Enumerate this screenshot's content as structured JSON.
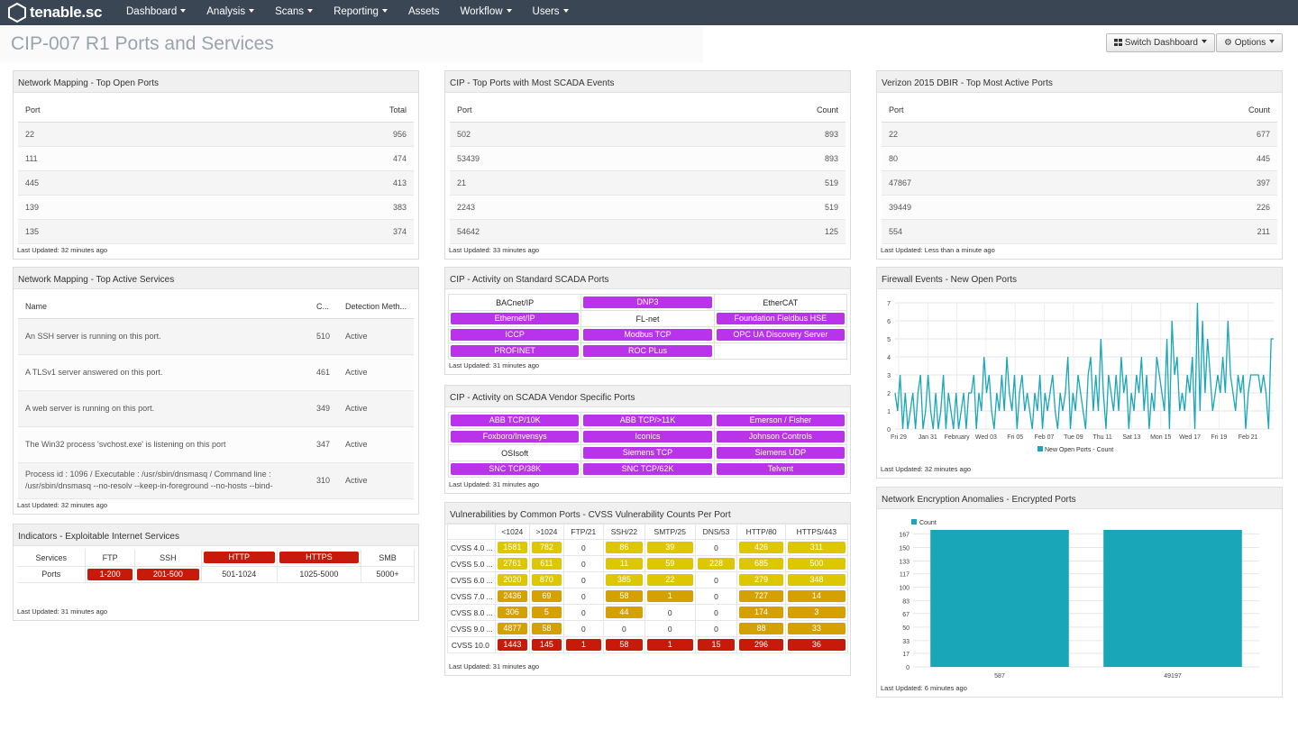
{
  "app": {
    "logo_text": "tenable.sc"
  },
  "nav": {
    "items": [
      "Dashboard",
      "Analysis",
      "Scans",
      "Reporting",
      "Assets",
      "Workflow",
      "Users"
    ]
  },
  "page": {
    "title": "CIP-007 R1 Ports and Services",
    "switch_label": "Switch Dashboard",
    "options_label": "Options"
  },
  "panels": {
    "top_open_ports": {
      "title": "Network Mapping - Top Open Ports",
      "col1": "Port",
      "col2": "Total",
      "rows": [
        [
          "22",
          "956"
        ],
        [
          "111",
          "474"
        ],
        [
          "445",
          "413"
        ],
        [
          "139",
          "383"
        ],
        [
          "135",
          "374"
        ]
      ],
      "updated": "Last Updated: 32 minutes ago"
    },
    "scada_events": {
      "title": "CIP - Top Ports with Most SCADA Events",
      "col1": "Port",
      "col2": "Count",
      "rows": [
        [
          "502",
          "893"
        ],
        [
          "53439",
          "893"
        ],
        [
          "21",
          "519"
        ],
        [
          "2243",
          "519"
        ],
        [
          "54642",
          "125"
        ]
      ],
      "updated": "Last Updated: 33 minutes ago"
    },
    "dbir": {
      "title": "Verizon 2015 DBIR - Top Most Active Ports",
      "col1": "Port",
      "col2": "Count",
      "rows": [
        [
          "22",
          "677"
        ],
        [
          "80",
          "445"
        ],
        [
          "47867",
          "397"
        ],
        [
          "39449",
          "226"
        ],
        [
          "554",
          "211"
        ]
      ],
      "updated": "Last Updated: Less than a minute ago"
    },
    "active_services": {
      "title": "Network Mapping - Top Active Services",
      "col_name": "Name",
      "col_count": "C...",
      "col_method": "Detection Meth...",
      "rows": [
        {
          "name": "An SSH server is running on this port.",
          "count": "510",
          "method": "Active"
        },
        {
          "name": "A TLSv1 server answered on this port.",
          "count": "461",
          "method": "Active"
        },
        {
          "name": "A web server is running on this port.",
          "count": "349",
          "method": "Active"
        },
        {
          "name": "The Win32 process 'svchost.exe' is listening on this port",
          "count": "347",
          "method": "Active"
        },
        {
          "name": "Process id : 1096 / Executable : /usr/sbin/dnsmasq / Command line : /usr/sbin/dnsmasq --no-resolv --keep-in-foreground --no-hosts --bind-",
          "count": "310",
          "method": "Active"
        }
      ],
      "updated": "Last Updated: 32 minutes ago"
    },
    "standard_scada": {
      "title": "CIP - Activity on Standard SCADA Ports",
      "cells": [
        {
          "label": "BACnet/IP",
          "active": false
        },
        {
          "label": "DNP3",
          "active": true
        },
        {
          "label": "EtherCAT",
          "active": false
        },
        {
          "label": "Ethernet/IP",
          "active": true
        },
        {
          "label": "FL-net",
          "active": false
        },
        {
          "label": "Foundation Fieldbus HSE",
          "active": true
        },
        {
          "label": "ICCP",
          "active": true
        },
        {
          "label": "Modbus TCP",
          "active": true
        },
        {
          "label": "OPC UA Discovery Server",
          "active": true
        },
        {
          "label": "PROFINET",
          "active": true
        },
        {
          "label": "ROC PLus",
          "active": true
        },
        {
          "label": "",
          "active": false
        }
      ],
      "updated": "Last Updated: 31 minutes ago"
    },
    "vendor_scada": {
      "title": "CIP - Activity on SCADA Vendor Specific Ports",
      "cells": [
        {
          "label": "ABB TCP/10K",
          "active": true
        },
        {
          "label": "ABB TCP/>11K",
          "active": true
        },
        {
          "label": "Emerson / Fisher",
          "active": true
        },
        {
          "label": "Foxboro/Invensys",
          "active": true
        },
        {
          "label": "Iconics",
          "active": true
        },
        {
          "label": "Johnson Controls",
          "active": true
        },
        {
          "label": "OSIsoft",
          "active": false
        },
        {
          "label": "Siemens TCP",
          "active": true
        },
        {
          "label": "Siemens UDP",
          "active": true
        },
        {
          "label": "SNC TCP/38K",
          "active": true
        },
        {
          "label": "SNC TCP/62K",
          "active": true
        },
        {
          "label": "Telvent",
          "active": true
        }
      ],
      "updated": "Last Updated: 31 minutes ago"
    },
    "indicators": {
      "title": "Indicators - Exploitable Internet Services",
      "headers": [
        "Services",
        "FTP",
        "SSH",
        "HTTP",
        "HTTPS",
        "SMB"
      ],
      "header_alert": [
        false,
        false,
        false,
        true,
        true,
        false
      ],
      "row": [
        "Ports",
        "1-200",
        "201-500",
        "501-1024",
        "1025-5000",
        "5000+"
      ],
      "row_alert": [
        false,
        true,
        true,
        false,
        false,
        false
      ],
      "updated": "Last Updated: 31 minutes ago"
    },
    "vuln_matrix": {
      "title": "Vulnerabilities by Common Ports - CVSS Vulnerability Counts Per Port",
      "headers": [
        "",
        "<1024",
        ">1024",
        "FTP/21",
        "SSH/22",
        "SMTP/25",
        "DNS/53",
        "HTTP/80",
        "HTTPS/443"
      ],
      "rows": [
        {
          "label": "CVSS 4.0 ...",
          "cells": [
            [
              "1581",
              "y"
            ],
            [
              "782",
              "y"
            ],
            [
              "0",
              ""
            ],
            [
              "86",
              "y"
            ],
            [
              "39",
              "y"
            ],
            [
              "0",
              ""
            ],
            [
              "426",
              "y"
            ],
            [
              "311",
              "y"
            ]
          ]
        },
        {
          "label": "CVSS 5.0 ...",
          "cells": [
            [
              "2761",
              "y"
            ],
            [
              "611",
              "y"
            ],
            [
              "0",
              ""
            ],
            [
              "11",
              "y"
            ],
            [
              "59",
              "y"
            ],
            [
              "228",
              "y"
            ],
            [
              "685",
              "y"
            ],
            [
              "500",
              "y"
            ]
          ]
        },
        {
          "label": "CVSS 6.0 ...",
          "cells": [
            [
              "2020",
              "y"
            ],
            [
              "870",
              "y"
            ],
            [
              "0",
              ""
            ],
            [
              "385",
              "y"
            ],
            [
              "22",
              "y"
            ],
            [
              "0",
              ""
            ],
            [
              "279",
              "y"
            ],
            [
              "348",
              "y"
            ]
          ]
        },
        {
          "label": "CVSS 7.0 ...",
          "cells": [
            [
              "2436",
              "o"
            ],
            [
              "69",
              "o"
            ],
            [
              "0",
              ""
            ],
            [
              "58",
              "o"
            ],
            [
              "1",
              "o"
            ],
            [
              "0",
              ""
            ],
            [
              "727",
              "o"
            ],
            [
              "14",
              "o"
            ]
          ]
        },
        {
          "label": "CVSS 8.0 ...",
          "cells": [
            [
              "306",
              "o"
            ],
            [
              "5",
              "o"
            ],
            [
              "0",
              ""
            ],
            [
              "44",
              "o"
            ],
            [
              "0",
              ""
            ],
            [
              "0",
              ""
            ],
            [
              "174",
              "o"
            ],
            [
              "3",
              "o"
            ]
          ]
        },
        {
          "label": "CVSS 9.0 ...",
          "cells": [
            [
              "4877",
              "o"
            ],
            [
              "58",
              "o"
            ],
            [
              "0",
              ""
            ],
            [
              "0",
              ""
            ],
            [
              "0",
              ""
            ],
            [
              "0",
              ""
            ],
            [
              "88",
              "o"
            ],
            [
              "33",
              "o"
            ]
          ]
        },
        {
          "label": "CVSS 10.0",
          "cells": [
            [
              "1443",
              "r"
            ],
            [
              "145",
              "r"
            ],
            [
              "1",
              "r"
            ],
            [
              "58",
              "r"
            ],
            [
              "1",
              "r"
            ],
            [
              "15",
              "r"
            ],
            [
              "296",
              "r"
            ],
            [
              "36",
              "r"
            ]
          ]
        }
      ],
      "updated": "Last Updated: 31 minutes ago"
    },
    "firewall": {
      "title": "Firewall Events - New Open Ports",
      "updated": "Last Updated: 32 minutes ago"
    },
    "encryption": {
      "title": "Network Encryption Anomalies - Encrypted Ports",
      "updated": "Last Updated: 6 minutes ago"
    }
  },
  "colors": {
    "accent": "#19a6b8",
    "purple": "#b833ea",
    "red": "#c81a0b",
    "yellow": "#dcc700",
    "orange": "#d4a100",
    "topbar": "#3a4654"
  },
  "chart_data": [
    {
      "type": "line",
      "title": "Firewall Events - New Open Ports",
      "legend": "New Open Ports - Count",
      "legend_position": "bottom",
      "xlabels": [
        "Fri 29",
        "Jan 31",
        "February",
        "Wed 03",
        "Fri 05",
        "Feb 07",
        "Tue 09",
        "Thu 11",
        "Sat 13",
        "Mon 15",
        "Wed 17",
        "Fri 19",
        "Feb 21"
      ],
      "ylim": [
        0,
        7
      ],
      "yticks": [
        0,
        1,
        2,
        3,
        4,
        5,
        6,
        7
      ],
      "values": [
        2,
        1,
        3,
        0,
        2,
        0,
        1,
        2,
        0,
        2,
        3,
        0,
        1,
        3,
        1,
        0,
        2,
        0,
        1,
        3,
        0,
        2,
        1,
        0,
        2,
        0,
        1,
        2,
        0,
        2,
        2,
        3,
        0,
        2,
        1,
        4,
        2,
        3,
        1,
        0,
        2,
        1,
        3,
        1,
        4,
        2,
        1,
        3,
        0,
        2,
        3,
        1,
        2,
        1,
        0,
        2,
        1,
        3,
        0,
        2,
        1,
        2,
        3,
        1,
        0,
        2,
        1,
        2,
        4,
        0,
        2,
        1,
        3,
        2,
        1,
        0,
        3,
        4,
        1,
        3,
        1,
        5,
        2,
        0,
        3,
        2,
        1,
        3,
        1,
        4,
        2,
        3,
        0,
        2,
        1,
        3,
        2,
        4,
        1,
        3,
        0,
        2,
        1,
        4,
        3,
        2,
        1,
        5,
        0,
        6,
        3,
        4,
        1,
        2,
        1,
        3,
        2,
        4,
        0,
        7,
        1,
        6,
        2,
        5,
        3,
        1,
        2,
        3,
        2,
        4,
        2,
        6,
        3,
        2,
        1,
        3,
        2,
        3,
        0,
        2,
        3,
        3,
        3,
        3,
        2,
        3,
        2,
        0,
        5,
        5
      ]
    },
    {
      "type": "bar",
      "title": "Network Encryption Anomalies - Encrypted Ports",
      "legend": "Count",
      "legend_position": "top-left",
      "categories": [
        "587",
        "49197"
      ],
      "values": [
        172,
        172
      ],
      "ylim": [
        0,
        172
      ],
      "yticks": [
        0,
        17,
        33,
        50,
        67,
        83,
        100,
        117,
        133,
        150,
        167
      ]
    }
  ]
}
